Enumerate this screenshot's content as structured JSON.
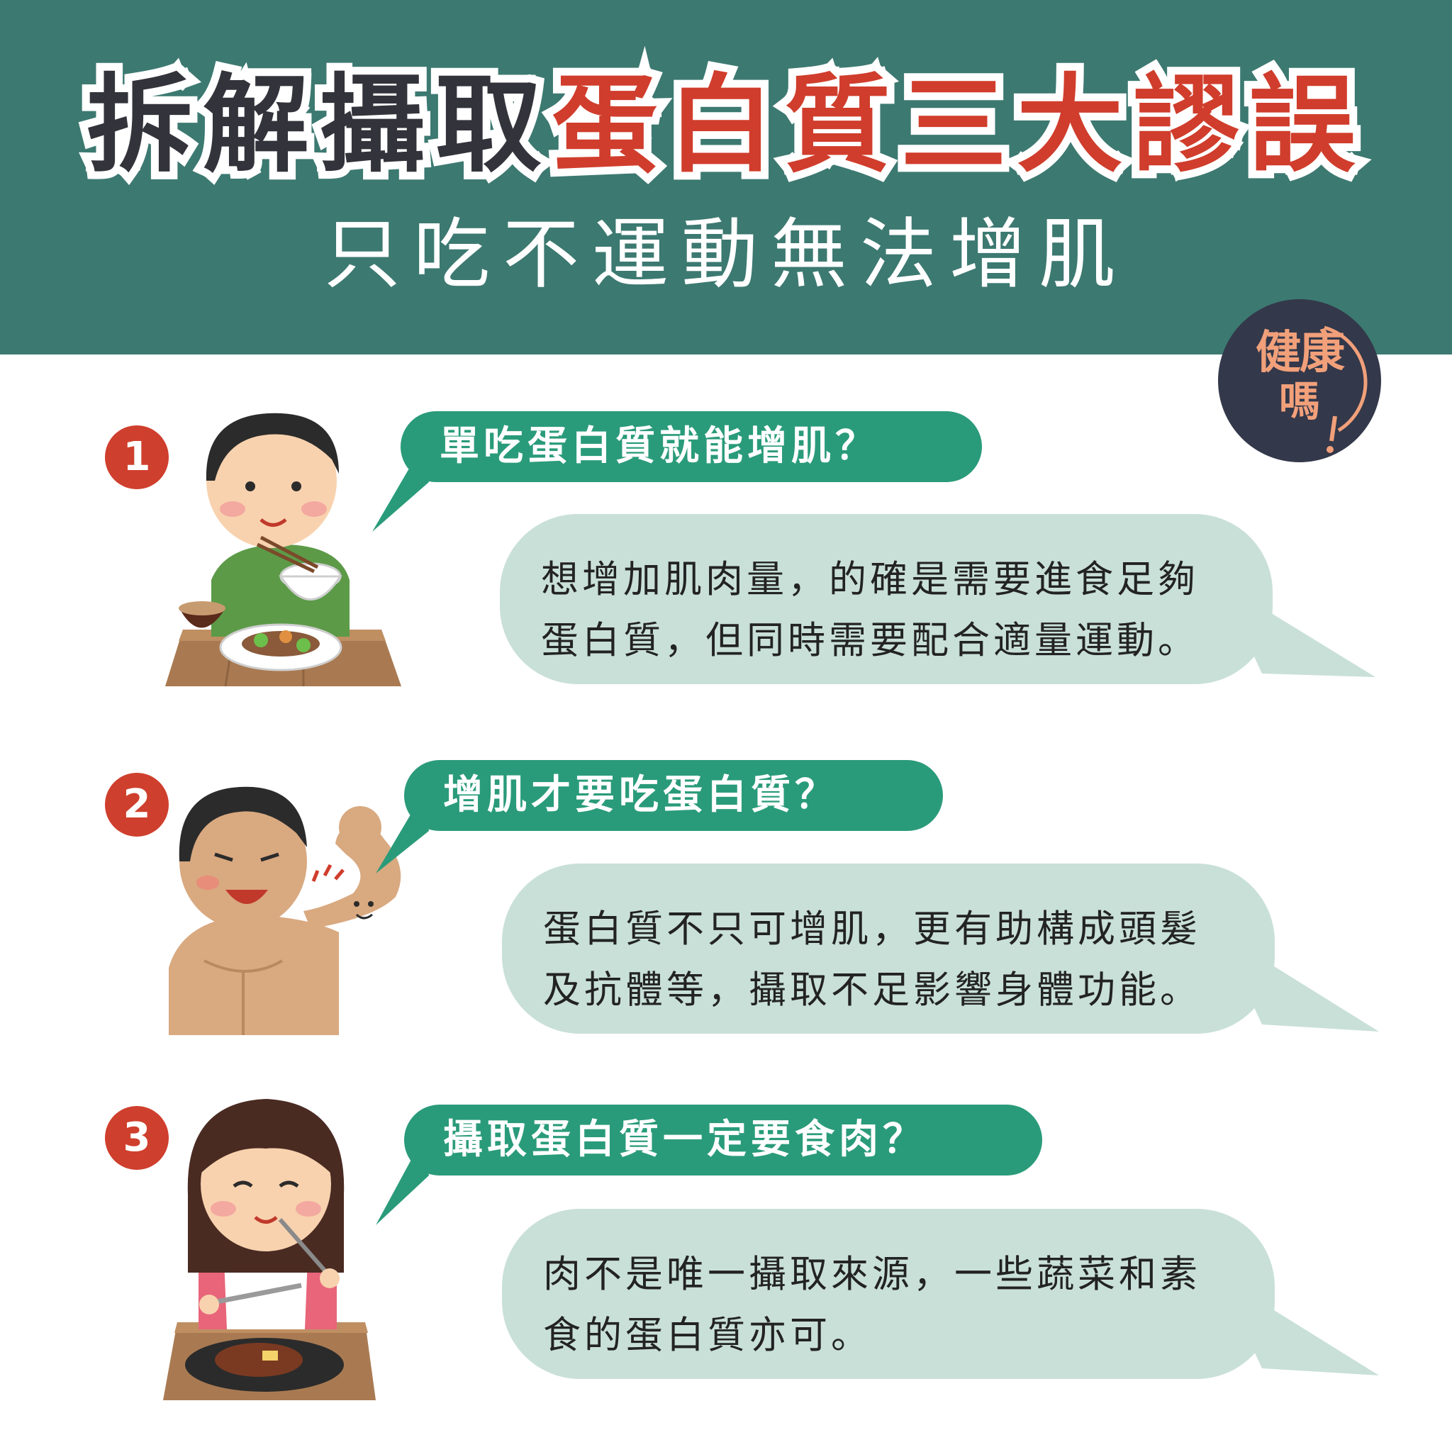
{
  "header": {
    "title_part1": "拆解攝取",
    "title_part2": "蛋白質三大謬誤",
    "subtitle": "只吃不運動無法增肌"
  },
  "logo": {
    "line1": "健康",
    "line2": "嗎"
  },
  "items": [
    {
      "number": "1",
      "question": "單吃蛋白質就能增肌？",
      "answer_lines": [
        "想增加肌肉量，的確是需要進食足夠",
        "蛋白質，但同時需要配合適量運動。"
      ]
    },
    {
      "number": "2",
      "question": "增肌才要吃蛋白質？",
      "answer_lines": [
        "蛋白質不只可增肌，更有助構成頭髮",
        "及抗體等，攝取不足影響身體功能。"
      ]
    },
    {
      "number": "3",
      "question": "攝取蛋白質一定要食肉？",
      "answer_lines": [
        "肉不是唯一攝取來源，一些蔬菜和素",
        "食的蛋白質亦可。"
      ]
    }
  ],
  "colors": {
    "header_bg": "#3c7971",
    "title_red": "#d03d2c",
    "title_dark": "#33333b",
    "number_bg": "#cf3f2d",
    "question_bg": "#2a9b7a",
    "answer_bg": "#c9e0d9",
    "logo_bg": "#33384a"
  }
}
